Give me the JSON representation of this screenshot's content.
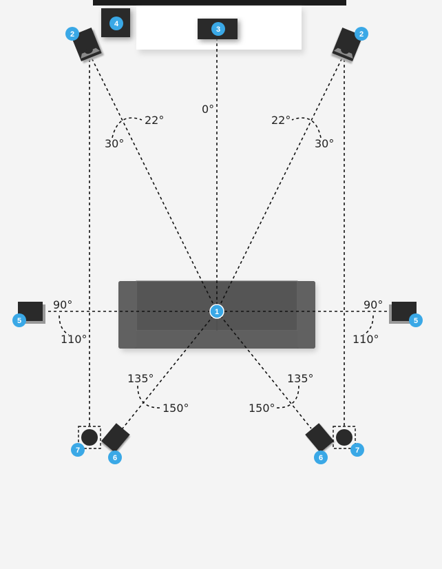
{
  "colors": {
    "background": "#f4f4f4",
    "badge": "#3aa8e6",
    "speaker": "#2a2a2a",
    "sofa": "#5a5a5a",
    "line": "#111111"
  },
  "badges": {
    "listener": "1",
    "front_left": "2",
    "front_right": "2",
    "center": "3",
    "subwoofer": "4",
    "side_left": "5",
    "side_right": "5",
    "rear_left": "6",
    "rear_right": "6",
    "back_left": "7",
    "back_right": "7"
  },
  "angles": {
    "center": "0°",
    "front_left_inner": "22°",
    "front_left_outer": "30°",
    "front_right_inner": "22°",
    "front_right_outer": "30°",
    "side_left_min": "90°",
    "side_left_max": "110°",
    "side_right_min": "90°",
    "side_right_max": "110°",
    "rear_left_min": "135°",
    "rear_left_max": "150°",
    "rear_right_min": "135°",
    "rear_right_max": "150°"
  }
}
